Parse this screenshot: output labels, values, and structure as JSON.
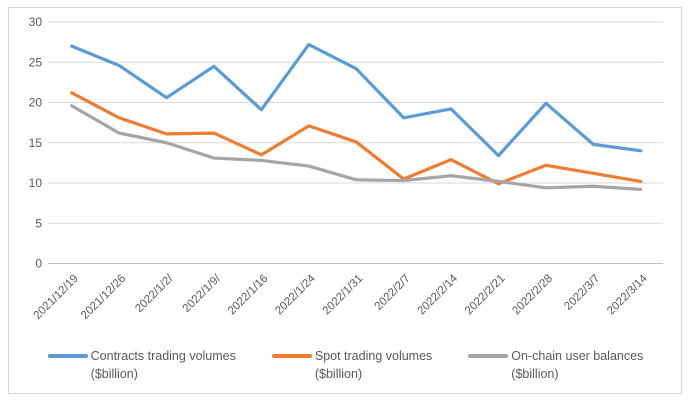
{
  "chart_data": {
    "type": "line",
    "title": "",
    "xlabel": "",
    "ylabel": "",
    "grid": true,
    "legend_position": "bottom",
    "ylim": [
      0,
      30
    ],
    "y_ticks": [
      0,
      5,
      10,
      15,
      20,
      25,
      30
    ],
    "x": [
      "2021/12/19",
      "2021/12/26",
      "2022/1/2/",
      "2022/1/9/",
      "2022/1/16",
      "2022/1/24",
      "2022/1/31",
      "2022/2/7",
      "2022/2/14",
      "2022/2/21",
      "2022/2/28",
      "2022/3/7",
      "2022/3/14"
    ],
    "series": [
      {
        "name": "Contracts trading volumes ($billion)",
        "legend_lines": [
          "Contracts trading volumes",
          "($billion)"
        ],
        "color": "#5B9BD5",
        "values": [
          27.0,
          24.6,
          20.6,
          24.5,
          19.1,
          27.2,
          24.2,
          18.1,
          19.2,
          13.4,
          19.9,
          14.8,
          14.0
        ]
      },
      {
        "name": "Spot trading volumes ($billion)",
        "legend_lines": [
          "Spot trading volumes",
          "($billion)"
        ],
        "color": "#ED7D31",
        "values": [
          21.2,
          18.1,
          16.1,
          16.2,
          13.5,
          17.1,
          15.1,
          10.5,
          12.9,
          9.9,
          12.2,
          11.2,
          10.2
        ]
      },
      {
        "name": "On-chain user balances ($billion)",
        "legend_lines": [
          "On-chain user balances",
          "($billion)"
        ],
        "color": "#A5A5A5",
        "values": [
          19.6,
          16.2,
          15.0,
          13.1,
          12.8,
          12.1,
          10.4,
          10.3,
          10.9,
          10.2,
          9.4,
          9.6,
          9.2
        ]
      }
    ]
  },
  "styles": {
    "gridline_color": "#D9D9D9",
    "axis_line_color": "#BFBFBF",
    "tick_text_color": "#595959",
    "frame_border_color": "#D7D7D7",
    "background_color": "#FFFFFF"
  }
}
